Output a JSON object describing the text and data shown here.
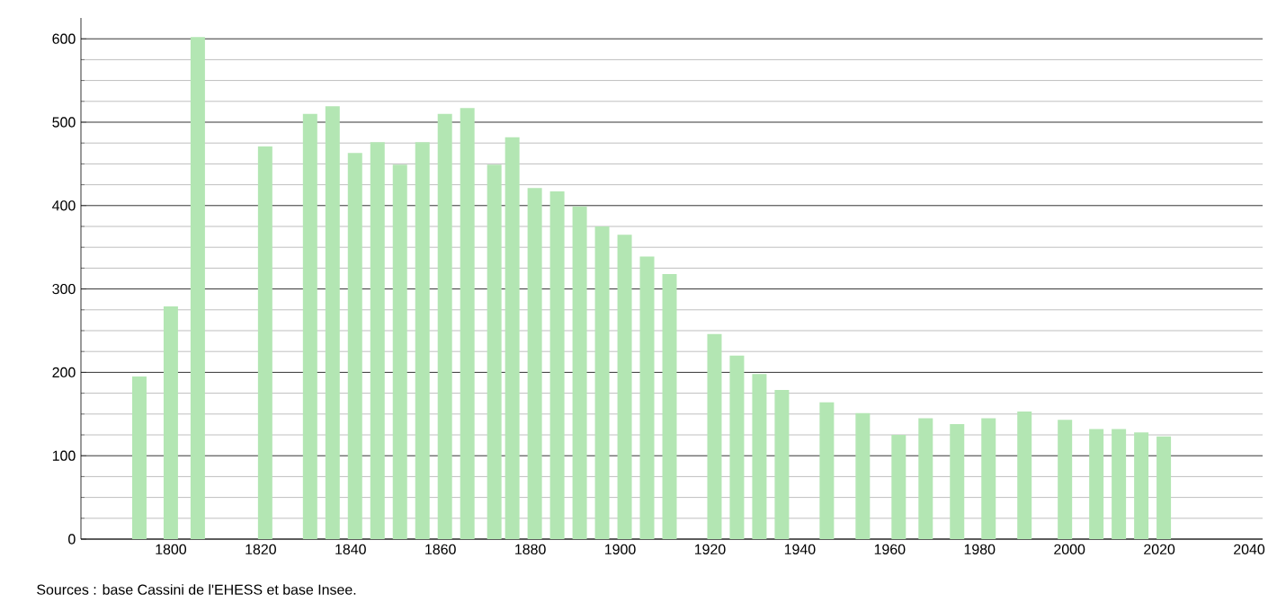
{
  "chart_data": {
    "type": "bar",
    "x": [
      1793,
      1800,
      1806,
      1821,
      1831,
      1836,
      1841,
      1846,
      1851,
      1856,
      1861,
      1866,
      1872,
      1876,
      1881,
      1886,
      1891,
      1896,
      1901,
      1906,
      1911,
      1921,
      1926,
      1931,
      1936,
      1946,
      1954,
      1962,
      1968,
      1975,
      1982,
      1990,
      1999,
      2006,
      2011,
      2016,
      2021
    ],
    "values": [
      195,
      279,
      602,
      471,
      510,
      519,
      463,
      476,
      449,
      476,
      510,
      517,
      449,
      482,
      421,
      417,
      399,
      375,
      365,
      339,
      318,
      246,
      220,
      198,
      179,
      164,
      151,
      125,
      145,
      138,
      145,
      153,
      143,
      132,
      132,
      128,
      123
    ],
    "color": "#b3e6b3",
    "xlim": [
      1780,
      2043
    ],
    "ylim": [
      0,
      625
    ],
    "xticks": [
      1800,
      1820,
      1840,
      1860,
      1880,
      1900,
      1920,
      1940,
      1960,
      1980,
      2000,
      2020,
      2040
    ],
    "yticks": [
      0,
      100,
      200,
      300,
      400,
      500,
      600
    ],
    "grid": "y",
    "annotations": [
      "Sources : base Cassini de l'EHESS et base Insee."
    ]
  }
}
